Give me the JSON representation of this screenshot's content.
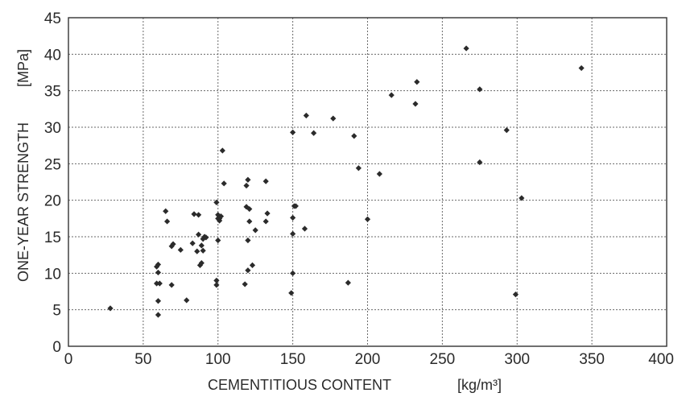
{
  "chart_data": {
    "type": "scatter",
    "title": "",
    "xlabel": "CEMENTITIOUS CONTENT",
    "xunit": "[kg/m³]",
    "ylabel": "ONE-YEAR STRENGTH",
    "yunit": "[MPa]",
    "xlim": [
      0,
      400
    ],
    "ylim": [
      0,
      45
    ],
    "xticks": [
      0,
      50,
      100,
      150,
      200,
      250,
      300,
      350,
      400
    ],
    "yticks": [
      0,
      5,
      10,
      15,
      20,
      25,
      30,
      35,
      40,
      45
    ],
    "grid": true,
    "legend": "none",
    "marker_color": "#2b2b2b",
    "series": [
      {
        "x": [
          28,
          60,
          60,
          59,
          60,
          59,
          60,
          61,
          65,
          66,
          69,
          69,
          70,
          75,
          79,
          83,
          84,
          86,
          87,
          87,
          88,
          89,
          89,
          90,
          90,
          91,
          92,
          99,
          99,
          99,
          100,
          100,
          100,
          101,
          101,
          102,
          103,
          104,
          118,
          119,
          119,
          120,
          120,
          120,
          121,
          121,
          123,
          125,
          132,
          132,
          133,
          149,
          150,
          150,
          150,
          150,
          151,
          152,
          158,
          159,
          164,
          177,
          187,
          191,
          194,
          200,
          208,
          216,
          232,
          233,
          266,
          275,
          275,
          293,
          299,
          303,
          343
        ],
        "y": [
          5.2,
          4.3,
          6.2,
          8.6,
          10.1,
          10.9,
          11.2,
          8.6,
          18.5,
          17.1,
          8.4,
          13.7,
          14.0,
          13.2,
          6.3,
          14.1,
          18.1,
          13.0,
          15.3,
          18.0,
          11.1,
          11.4,
          13.8,
          14.7,
          13.1,
          15.0,
          14.9,
          8.4,
          9.0,
          19.7,
          17.5,
          18.0,
          14.5,
          17.2,
          17.5,
          17.8,
          26.8,
          22.3,
          8.5,
          19.1,
          22.0,
          22.8,
          10.4,
          14.5,
          17.1,
          18.8,
          11.1,
          15.9,
          22.6,
          17.1,
          18.2,
          7.3,
          29.3,
          10.0,
          15.4,
          17.6,
          19.2,
          19.2,
          16.1,
          31.6,
          29.2,
          31.2,
          8.7,
          28.8,
          24.4,
          17.4,
          23.6,
          34.4,
          33.2,
          36.2,
          40.8,
          35.2,
          25.2,
          29.6,
          7.1,
          20.3,
          38.1
        ]
      }
    ]
  }
}
